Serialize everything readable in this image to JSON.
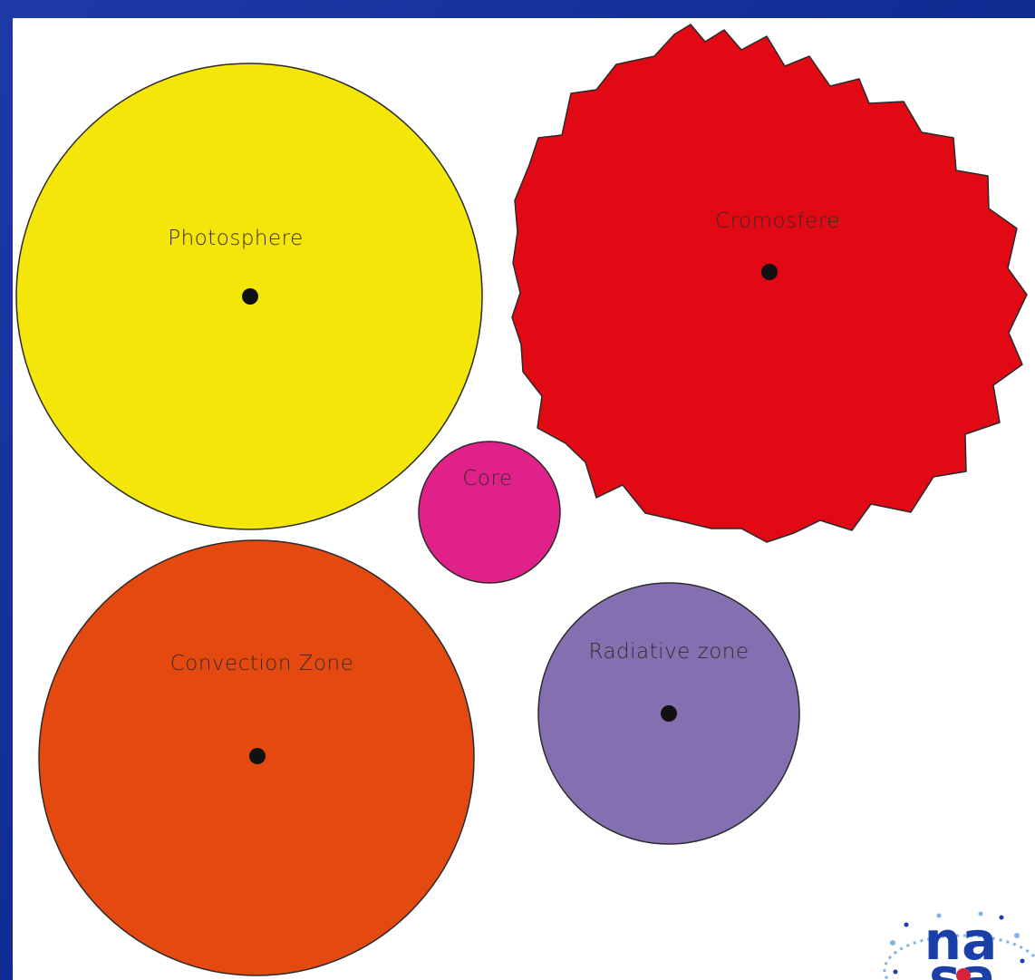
{
  "diagram": {
    "shapes": [
      {
        "id": "photosphere",
        "label": "Photosphere",
        "fill": "#f5e60a",
        "has_dot": true
      },
      {
        "id": "cromosfere",
        "label": "Cromosfere",
        "fill": "#e10914",
        "has_dot": true
      },
      {
        "id": "core",
        "label": "Core",
        "fill": "#e0218a",
        "has_dot": false
      },
      {
        "id": "convection_zone",
        "label": "Convection Zone",
        "fill": "#e44a10",
        "has_dot": true
      },
      {
        "id": "radiative_zone",
        "label": "Radiative zone",
        "fill": "#8470b0",
        "has_dot": true
      }
    ]
  },
  "logo": {
    "text": "na sa",
    "colors": [
      "#1b3fa8",
      "#d8233a",
      "#7fb6e8"
    ]
  },
  "colors": {
    "background": "#1230a0",
    "sheet": "#ffffff",
    "outline": "#2a2a2a",
    "dot": "#111111"
  }
}
